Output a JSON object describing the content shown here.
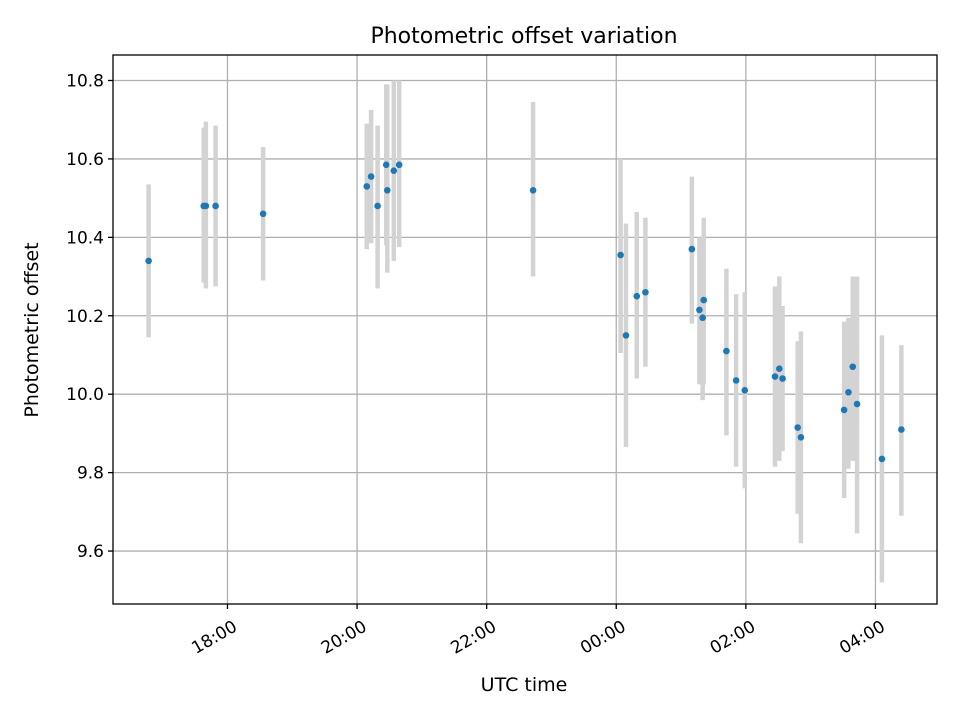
{
  "chart_data": {
    "type": "scatter",
    "title": "Photometric offset variation",
    "xlabel": "UTC time",
    "ylabel": "Photometric offset",
    "x_unit": "UTC time (hours, hh:mm)",
    "xlim": [
      "16:14",
      "04:57"
    ],
    "ylim": [
      9.465,
      10.865
    ],
    "xticks": [
      "18:00",
      "20:00",
      "22:00",
      "00:00",
      "02:00",
      "04:00"
    ],
    "yticks": [
      "9.6",
      "9.8",
      "10.0",
      "10.2",
      "10.4",
      "10.6",
      "10.8"
    ],
    "grid": true,
    "colors": {
      "points": "#1f77b4",
      "errorbars": "#d3d3d3",
      "grid": "#b0b0b0"
    },
    "series": [
      {
        "points": [
          {
            "x": "16:47",
            "y": 10.34,
            "yerr_low": 10.145,
            "yerr_high": 10.535
          },
          {
            "x": "17:40",
            "y": 10.48,
            "yerr_low": 10.27,
            "yerr_high": 10.695
          },
          {
            "x": "17:38",
            "y": 10.48,
            "yerr_low": 10.285,
            "yerr_high": 10.68
          },
          {
            "x": "17:49",
            "y": 10.48,
            "yerr_low": 10.275,
            "yerr_high": 10.685
          },
          {
            "x": "18:33",
            "y": 10.46,
            "yerr_low": 10.29,
            "yerr_high": 10.63
          },
          {
            "x": "20:09",
            "y": 10.53,
            "yerr_low": 10.37,
            "yerr_high": 10.69
          },
          {
            "x": "20:13",
            "y": 10.555,
            "yerr_low": 10.385,
            "yerr_high": 10.725
          },
          {
            "x": "20:19",
            "y": 10.48,
            "yerr_low": 10.27,
            "yerr_high": 10.685
          },
          {
            "x": "20:27",
            "y": 10.585,
            "yerr_low": 10.38,
            "yerr_high": 10.79
          },
          {
            "x": "20:28",
            "y": 10.52,
            "yerr_low": 10.31,
            "yerr_high": 10.79
          },
          {
            "x": "20:34",
            "y": 10.57,
            "yerr_low": 10.34,
            "yerr_high": 10.8
          },
          {
            "x": "20:39",
            "y": 10.585,
            "yerr_low": 10.375,
            "yerr_high": 10.8
          },
          {
            "x": "22:43",
            "y": 10.52,
            "yerr_low": 10.3,
            "yerr_high": 10.745
          },
          {
            "x": "00:04",
            "y": 10.355,
            "yerr_low": 10.105,
            "yerr_high": 10.6
          },
          {
            "x": "00:09",
            "y": 10.15,
            "yerr_low": 9.865,
            "yerr_high": 10.435
          },
          {
            "x": "00:19",
            "y": 10.25,
            "yerr_low": 10.04,
            "yerr_high": 10.465
          },
          {
            "x": "00:27",
            "y": 10.26,
            "yerr_low": 10.07,
            "yerr_high": 10.45
          },
          {
            "x": "01:10",
            "y": 10.37,
            "yerr_low": 10.18,
            "yerr_high": 10.555
          },
          {
            "x": "01:17",
            "y": 10.215,
            "yerr_low": 10.025,
            "yerr_high": 10.4
          },
          {
            "x": "01:20",
            "y": 10.195,
            "yerr_low": 9.985,
            "yerr_high": 10.4
          },
          {
            "x": "01:21",
            "y": 10.24,
            "yerr_low": 10.025,
            "yerr_high": 10.45
          },
          {
            "x": "01:42",
            "y": 10.11,
            "yerr_low": 9.895,
            "yerr_high": 10.32
          },
          {
            "x": "01:51",
            "y": 10.035,
            "yerr_low": 9.815,
            "yerr_high": 10.255
          },
          {
            "x": "01:59",
            "y": 10.01,
            "yerr_low": 9.76,
            "yerr_high": 10.26
          },
          {
            "x": "02:27",
            "y": 10.045,
            "yerr_low": 9.815,
            "yerr_high": 10.275
          },
          {
            "x": "02:31",
            "y": 10.065,
            "yerr_low": 9.83,
            "yerr_high": 10.3
          },
          {
            "x": "02:34",
            "y": 10.04,
            "yerr_low": 9.855,
            "yerr_high": 10.225
          },
          {
            "x": "02:48",
            "y": 9.915,
            "yerr_low": 9.695,
            "yerr_high": 10.135
          },
          {
            "x": "02:51",
            "y": 9.89,
            "yerr_low": 9.62,
            "yerr_high": 10.16
          },
          {
            "x": "03:31",
            "y": 9.96,
            "yerr_low": 9.735,
            "yerr_high": 10.185
          },
          {
            "x": "03:35",
            "y": 10.005,
            "yerr_low": 9.81,
            "yerr_high": 10.195
          },
          {
            "x": "03:39",
            "y": 10.07,
            "yerr_low": 9.83,
            "yerr_high": 10.3
          },
          {
            "x": "03:43",
            "y": 9.975,
            "yerr_low": 9.645,
            "yerr_high": 10.3
          },
          {
            "x": "04:06",
            "y": 9.835,
            "yerr_low": 9.52,
            "yerr_high": 10.15
          },
          {
            "x": "04:24",
            "y": 9.91,
            "yerr_low": 9.69,
            "yerr_high": 10.125
          }
        ]
      }
    ]
  }
}
